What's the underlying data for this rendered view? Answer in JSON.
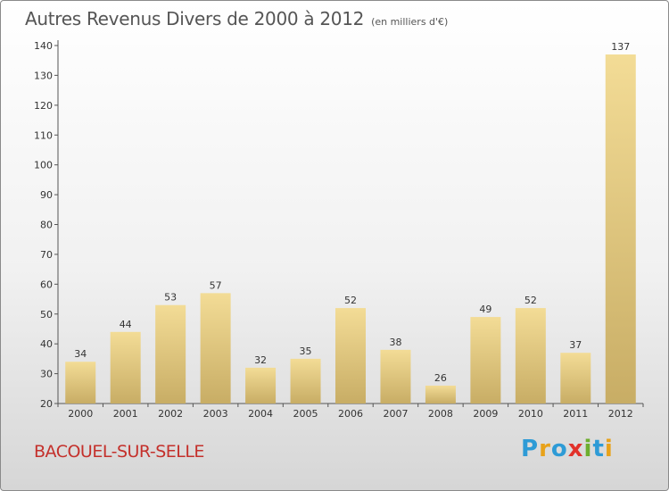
{
  "header": {
    "title": "Autres Revenus Divers de 2000 à 2012",
    "subtitle": "(en milliers d'€)"
  },
  "footer": {
    "commune": "BACOUEL-SUR-SELLE",
    "logo": {
      "letters": [
        "P",
        "r",
        "o",
        "x",
        "i",
        "t",
        "i"
      ],
      "colors": [
        "#2e9bd6",
        "#e8a21a",
        "#2e9bd6",
        "#e2322b",
        "#6dae2e",
        "#2e9bd6",
        "#e8a21a"
      ]
    }
  },
  "colors": {
    "bar_light": "#f3dc96",
    "bar_dark": "#c8ad65",
    "axis": "#555555",
    "title": "#555555",
    "commune": "#c4302b"
  },
  "chart_data": {
    "type": "bar",
    "title": "Autres Revenus Divers de 2000 à 2012",
    "subtitle": "(en milliers d'€)",
    "categories": [
      "2000",
      "2001",
      "2002",
      "2003",
      "2004",
      "2005",
      "2006",
      "2007",
      "2008",
      "2009",
      "2010",
      "2011",
      "2012"
    ],
    "values": [
      34,
      44,
      53,
      57,
      32,
      35,
      52,
      38,
      26,
      49,
      52,
      37,
      137
    ],
    "ylim": [
      20,
      140
    ],
    "yticks": [
      20,
      30,
      40,
      50,
      60,
      70,
      80,
      90,
      100,
      110,
      120,
      130,
      140
    ],
    "grid": false,
    "legend": "none"
  }
}
